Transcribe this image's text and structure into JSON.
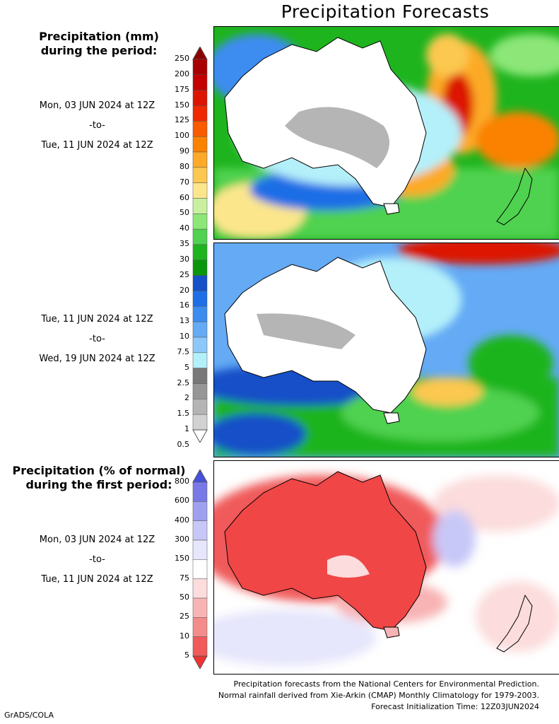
{
  "title": "Precipitation Forecasts",
  "panel1": {
    "heading": [
      "Precipitation (mm)",
      "during the period:"
    ],
    "start": "Mon, 03 JUN 2024 at 12Z",
    "sep": "-to-",
    "end": "Tue, 11 JUN 2024 at 12Z"
  },
  "panel2": {
    "start": "Tue, 11 JUN 2024 at 12Z",
    "sep": "-to-",
    "end": "Wed, 19 JUN 2024 at 12Z"
  },
  "panel3": {
    "heading": [
      "Precipitation (% of normal)",
      "during the first period:"
    ],
    "start": "Mon, 03 JUN 2024 at 12Z",
    "sep": "-to-",
    "end": "Tue, 11 JUN 2024 at 12Z"
  },
  "precip_scale": {
    "labels": [
      "250",
      "200",
      "175",
      "150",
      "125",
      "100",
      "90",
      "80",
      "70",
      "60",
      "50",
      "40",
      "35",
      "30",
      "25",
      "20",
      "16",
      "13",
      "10",
      "7.5",
      "5",
      "2.5",
      "2",
      "1.5",
      "1",
      "0.5"
    ],
    "colors": [
      "#8c0000",
      "#a80000",
      "#c40000",
      "#dc1400",
      "#f02800",
      "#fa5a00",
      "#fa8200",
      "#fcaa28",
      "#fcc850",
      "#fce68c",
      "#c8f0a0",
      "#8ce678",
      "#50d250",
      "#1eb41e",
      "#0a960a",
      "#1450c8",
      "#1e6ee6",
      "#3c8cf0",
      "#64aaf5",
      "#8cc8fa",
      "#b4f0fa",
      "#787878",
      "#969696",
      "#b4b4b4",
      "#d2d2d2",
      "#ffffff"
    ]
  },
  "pct_scale": {
    "labels": [
      "800",
      "600",
      "400",
      "300",
      "150",
      "75",
      "50",
      "25",
      "10",
      "5"
    ],
    "colors": [
      "#4650dc",
      "#7878e6",
      "#a0a0f0",
      "#c8c8f8",
      "#e6e6fc",
      "#ffffff",
      "#fcdcdc",
      "#f8b4b4",
      "#f48c8c",
      "#f05a5a",
      "#f03232"
    ]
  },
  "footer": [
    "Precipitation forecasts from the National Centers for Environmental Prediction.",
    "Normal rainfall derived from Xie-Arkin (CMAP) Monthly Climatology for 1979-2003.",
    "Forecast Initialization Time: 12Z03JUN2024"
  ],
  "credit": "GrADS/COLA"
}
